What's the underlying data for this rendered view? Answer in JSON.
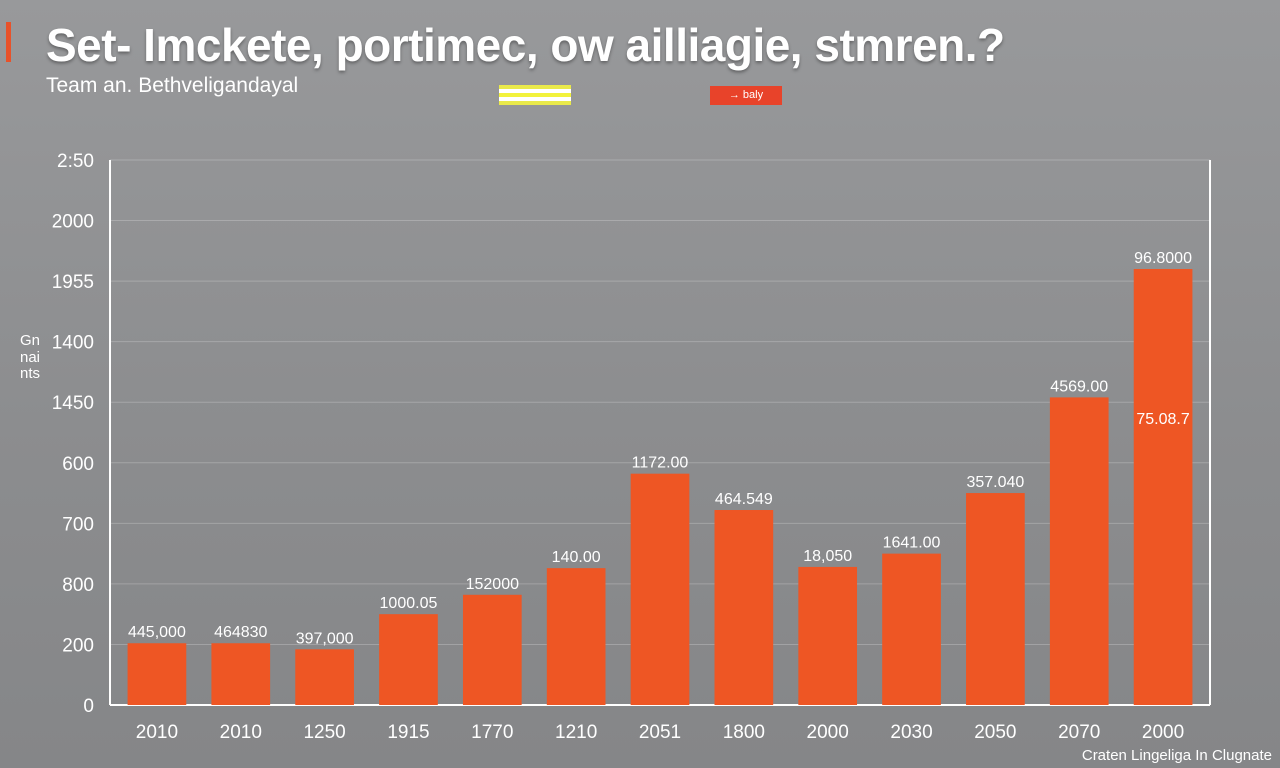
{
  "title": "Set- Imckete, portimec, ow ailliagie, stmren.?",
  "subtitle": "Team an. Bethveligandayal",
  "legend": {
    "entries": [
      {
        "label": "",
        "color": "#f2f23c"
      },
      {
        "label": "→ baly",
        "color": "#e8432a"
      }
    ]
  },
  "credit": "Craten Lingeliga In Clugnate",
  "colors": {
    "bar": "#ee5624",
    "accent": "#e8522a",
    "background": "#8f9092"
  },
  "chart_data": {
    "type": "bar",
    "ylabel": "Gnnaints",
    "xlabel": "",
    "yticks": [
      "0",
      "200",
      "800",
      "700",
      "600",
      "1450",
      "1400",
      "1955",
      "2000",
      "2:50"
    ],
    "ylim": [
      0,
      2250
    ],
    "grid": true,
    "categories": [
      "2010",
      "2010",
      "1250",
      "1915",
      "1770",
      "1210",
      "2051",
      "1800",
      "2000",
      "2030",
      "2050",
      "2070",
      "2000"
    ],
    "values": [
      255,
      255,
      230,
      375,
      455,
      565,
      955,
      805,
      570,
      625,
      875,
      1270,
      1800
    ],
    "value_labels": [
      "445,000",
      "464830",
      "397,000",
      "1000.05",
      "152000",
      "140.00",
      "1172.00",
      "464.549",
      "18,050",
      "1641.00",
      "357.040",
      "4569.00",
      "96.8000"
    ],
    "inner_labels": [
      "",
      "",
      "",
      "",
      "",
      "",
      "",
      "",
      "",
      "",
      "",
      "",
      "75.08.7"
    ]
  }
}
